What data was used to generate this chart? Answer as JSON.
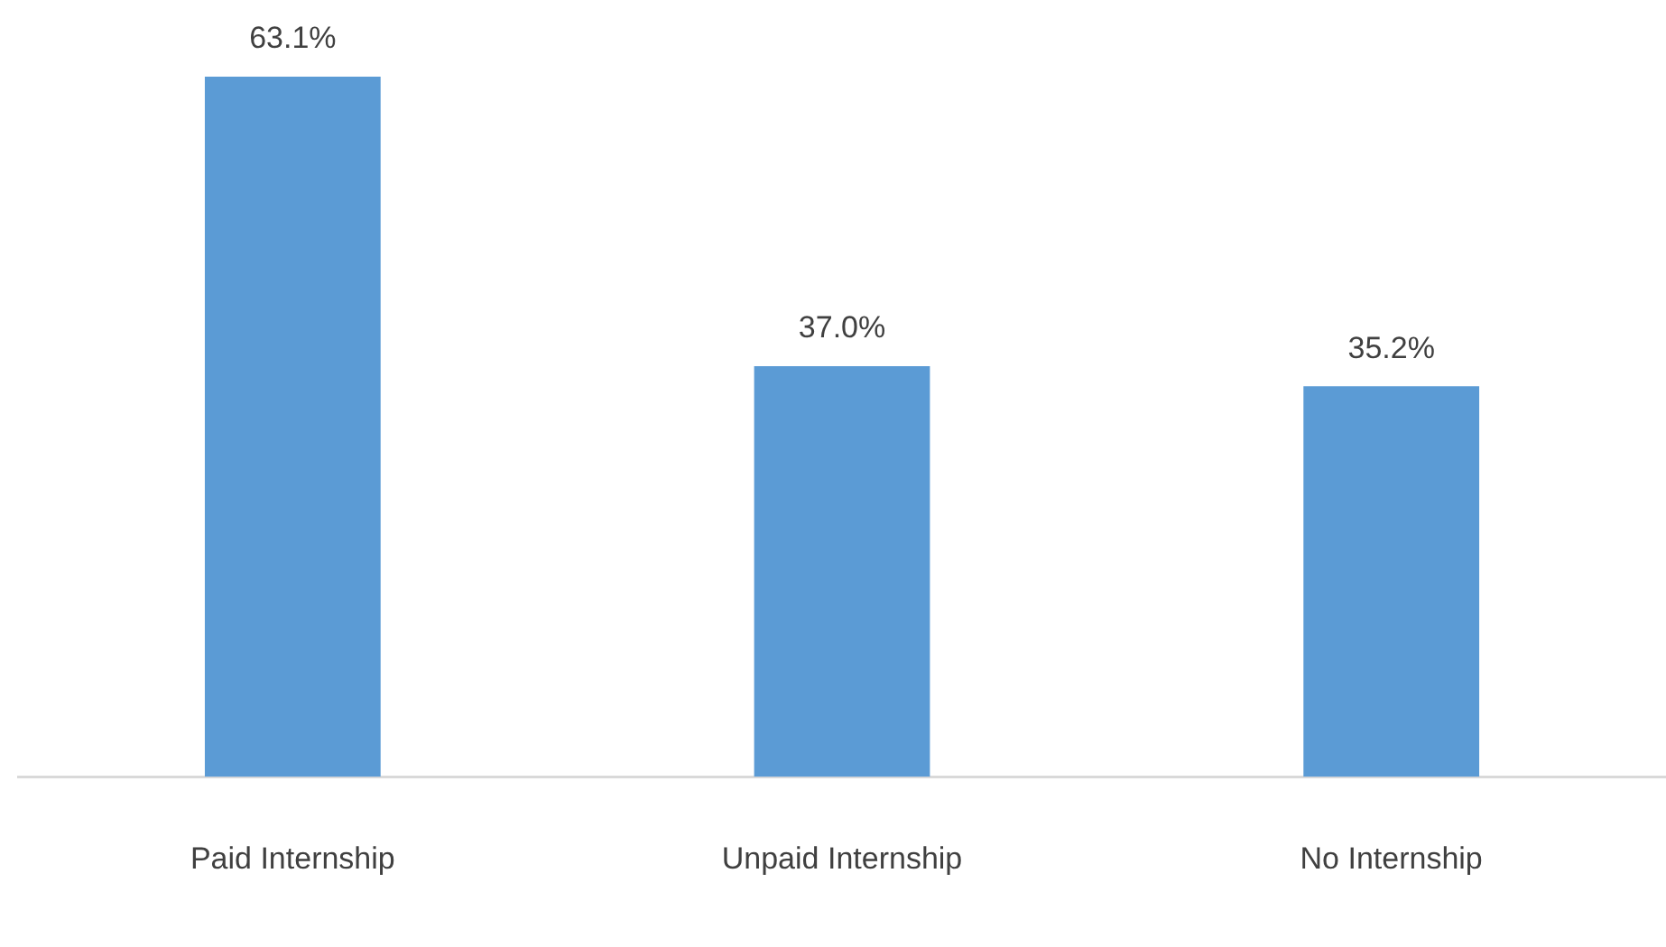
{
  "chart_data": {
    "type": "bar",
    "categories": [
      "Paid Internship",
      "Unpaid Internship",
      "No Internship"
    ],
    "values": [
      63.1,
      37.0,
      35.2
    ],
    "value_labels": [
      "63.1%",
      "37.0%",
      "35.2%"
    ],
    "color": "#5b9bd5",
    "grid": false,
    "legend": false
  }
}
